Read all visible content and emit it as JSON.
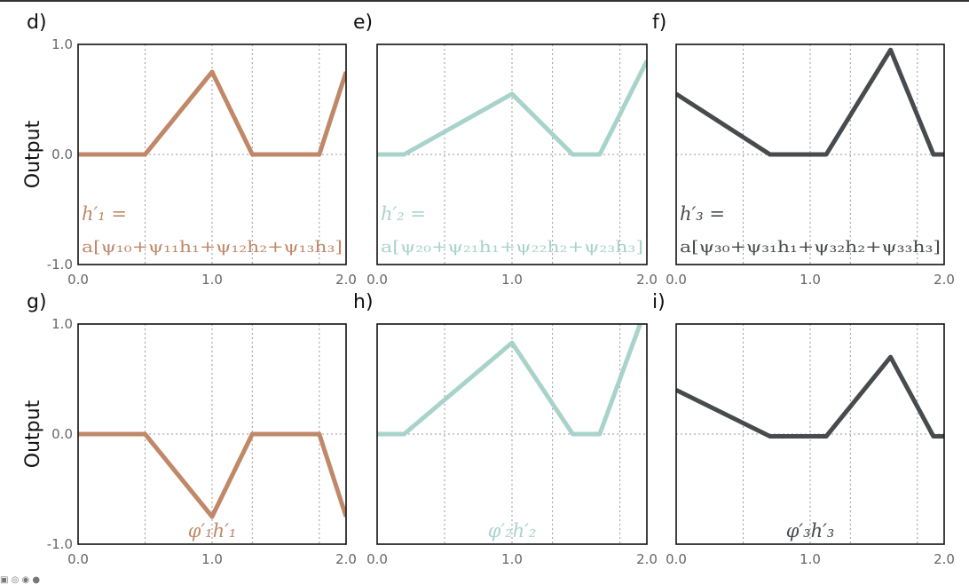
{
  "ylabel": "Output",
  "colors": [
    "#c08868",
    "#a8d3cb",
    "#474b4d"
  ],
  "grid_x": [
    0.5,
    1.0,
    1.3,
    1.8
  ],
  "chart_data": [
    {
      "panel": "d)",
      "type": "line",
      "color": "#c08868",
      "xlim": [
        0,
        2
      ],
      "ylim": [
        -1,
        1
      ],
      "xticks": [
        "0.0",
        "1.0",
        "2.0"
      ],
      "yticks": [
        "1.0",
        "0.0",
        "-1.0"
      ],
      "show_yticks": true,
      "x": [
        0,
        0.5,
        1.0,
        1.3,
        1.8,
        2.0
      ],
      "y": [
        0,
        0,
        0.75,
        0,
        0,
        0.75
      ],
      "annotation": {
        "line1": "h′₁ =",
        "line2": "a[ψ₁₀+ψ₁₁h₁+ψ₁₂h₂+ψ₁₃h₃]"
      }
    },
    {
      "panel": "e)",
      "type": "line",
      "color": "#a8d3cb",
      "xlim": [
        0,
        2
      ],
      "ylim": [
        -1,
        1
      ],
      "xticks": [
        "0.0",
        "1.0",
        "2.0"
      ],
      "yticks": [],
      "show_yticks": false,
      "x": [
        0,
        0.2,
        1.0,
        1.45,
        1.65,
        2.0
      ],
      "y": [
        0,
        0,
        0.55,
        0,
        0,
        0.85
      ],
      "annotation": {
        "line1": "h′₂ =",
        "line2": "a[ψ₂₀+ψ₂₁h₁+ψ₂₂h₂+ψ₂₃h₃]"
      }
    },
    {
      "panel": "f)",
      "type": "line",
      "color": "#474b4d",
      "xlim": [
        0,
        2
      ],
      "ylim": [
        -1,
        1
      ],
      "xticks": [
        "0.0",
        "1.0",
        "2.0"
      ],
      "yticks": [],
      "show_yticks": false,
      "x": [
        0,
        0.7,
        1.12,
        1.6,
        1.92,
        2.0
      ],
      "y": [
        0.55,
        0,
        0,
        0.95,
        0,
        0
      ],
      "annotation": {
        "line1": "h′₃ =",
        "line2": "a[ψ₃₀+ψ₃₁h₁+ψ₃₂h₂+ψ₃₃h₃]"
      }
    },
    {
      "panel": "g)",
      "type": "line",
      "color": "#c08868",
      "xlim": [
        0,
        2
      ],
      "ylim": [
        -1,
        1
      ],
      "xticks": [
        "0.0",
        "1.0",
        "2.0"
      ],
      "yticks": [
        "1.0",
        "0.0",
        "-1.0"
      ],
      "show_yticks": true,
      "x": [
        0,
        0.5,
        1.0,
        1.3,
        1.8,
        2.0
      ],
      "y": [
        0,
        0,
        -0.75,
        0,
        0,
        -0.75
      ],
      "annotation": {
        "line1": "φ′₁h′₁",
        "line2": ""
      }
    },
    {
      "panel": "h)",
      "type": "line",
      "color": "#a8d3cb",
      "xlim": [
        0,
        2
      ],
      "ylim": [
        -1,
        1
      ],
      "xticks": [
        "0.0",
        "1.0",
        "2.0"
      ],
      "yticks": [],
      "show_yticks": false,
      "x": [
        0,
        0.2,
        1.0,
        1.45,
        1.65,
        1.95
      ],
      "y": [
        0,
        0,
        0.83,
        0,
        0,
        1.0
      ],
      "annotation": {
        "line1": "φ′₂h′₂",
        "line2": ""
      }
    },
    {
      "panel": "i)",
      "type": "line",
      "color": "#474b4d",
      "xlim": [
        0,
        2
      ],
      "ylim": [
        -1,
        1
      ],
      "xticks": [
        "0.0",
        "1.0",
        "2.0"
      ],
      "yticks": [],
      "show_yticks": false,
      "x": [
        0,
        0.7,
        1.12,
        1.6,
        1.92,
        2.0
      ],
      "y": [
        0.4,
        -0.02,
        -0.02,
        0.7,
        -0.02,
        -0.02
      ],
      "annotation": {
        "line1": "φ′₃h′₃",
        "line2": ""
      }
    }
  ]
}
